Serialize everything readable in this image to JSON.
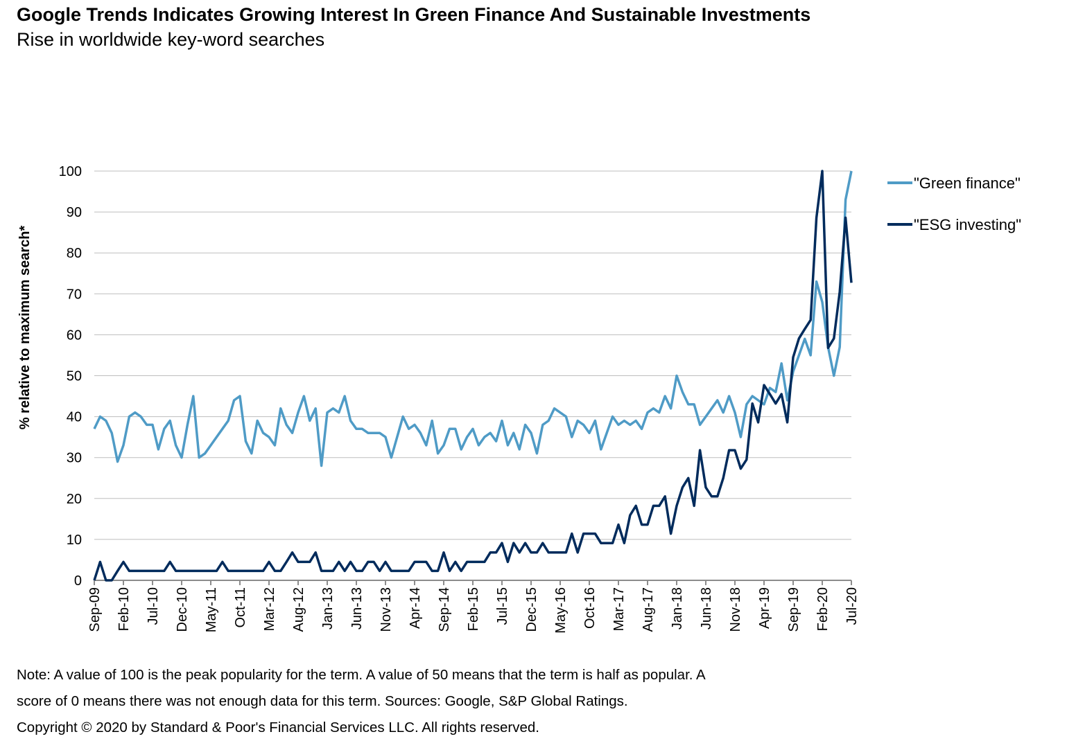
{
  "title": "Google Trends Indicates Growing Interest In Green Finance And Sustainable Investments",
  "subtitle": "Rise in worldwide key-word searches",
  "notes": [
    "Note: A value of 100 is the peak popularity for the term. A value of 50 means that the term is half as popular. A",
    "score of 0 means there was not enough data for this term. Sources: Google, S&P Global Ratings.",
    "Copyright © 2020 by Standard & Poor's Financial Services LLC. All rights reserved."
  ],
  "chart_data": {
    "type": "line",
    "title": "Google Trends Indicates Growing Interest In Green Finance And Sustainable Investments",
    "subtitle": "Rise in worldwide key-word searches",
    "xlabel": "",
    "ylabel": "% relative to maximum search*",
    "x_start": "Sep-09",
    "x_end": "Jul-20",
    "x_frequency": "monthly",
    "x_tick_labels": [
      "Sep-09",
      "Feb-10",
      "Jul-10",
      "Dec-10",
      "May-11",
      "Oct-11",
      "Mar-12",
      "Aug-12",
      "Jan-13",
      "Jun-13",
      "Nov-13",
      "Apr-14",
      "Sep-14",
      "Feb-15",
      "Jul-15",
      "Dec-15",
      "May-16",
      "Oct-16",
      "Mar-17",
      "Aug-17",
      "Jan-18",
      "Jun-18",
      "Nov-18",
      "Apr-19",
      "Sep-19",
      "Feb-20",
      "Jul-20"
    ],
    "y_ticks": [
      0,
      10,
      20,
      30,
      40,
      50,
      60,
      70,
      80,
      90,
      100
    ],
    "ylim": [
      0,
      100
    ],
    "grid": "horizontal",
    "legend_position": "right",
    "series": [
      {
        "name": "\"Green finance\"",
        "color": "#4f9bc6",
        "values": [
          37,
          40,
          39,
          36,
          29,
          33,
          40,
          41,
          40,
          38,
          38,
          32,
          37,
          39,
          33,
          30,
          38,
          45,
          30,
          31,
          33,
          35,
          37,
          39,
          44,
          45,
          34,
          31,
          39,
          36,
          35,
          33,
          42,
          38,
          36,
          41,
          45,
          39,
          42,
          28,
          41,
          42,
          41,
          45,
          39,
          37,
          37,
          36,
          36,
          36,
          35,
          30,
          35,
          40,
          37,
          38,
          36,
          33,
          39,
          31,
          33,
          37,
          37,
          32,
          35,
          37,
          33,
          35,
          36,
          34,
          39,
          33,
          36,
          32,
          38,
          36,
          31,
          38,
          39,
          42,
          41,
          40,
          35,
          39,
          38,
          36,
          39,
          32,
          36,
          40,
          38,
          39,
          38,
          39,
          37,
          41,
          42,
          41,
          45,
          42,
          50,
          46,
          43,
          43,
          38,
          40,
          42,
          44,
          41,
          45,
          41,
          35,
          43,
          45,
          44,
          43,
          47,
          46,
          53,
          44,
          51,
          55,
          59,
          55,
          73,
          68,
          57,
          50,
          57,
          93,
          100
        ]
      },
      {
        "name": "\"ESG investing\"",
        "color": "#002b5c",
        "values": [
          0,
          4.5,
          0,
          0,
          2.3,
          4.5,
          2.3,
          2.3,
          2.3,
          2.3,
          2.3,
          2.3,
          2.3,
          4.5,
          2.3,
          2.3,
          2.3,
          2.3,
          2.3,
          2.3,
          2.3,
          2.3,
          4.5,
          2.3,
          2.3,
          2.3,
          2.3,
          2.3,
          2.3,
          2.3,
          4.5,
          2.3,
          2.3,
          4.5,
          6.8,
          4.5,
          4.5,
          4.5,
          6.8,
          2.3,
          2.3,
          2.3,
          4.5,
          2.3,
          4.5,
          2.3,
          2.3,
          4.5,
          4.5,
          2.3,
          4.5,
          2.3,
          2.3,
          2.3,
          2.3,
          4.5,
          4.5,
          4.5,
          2.3,
          2.3,
          6.8,
          2.3,
          4.5,
          2.3,
          4.5,
          4.5,
          4.5,
          4.5,
          6.8,
          6.8,
          9.1,
          4.5,
          9.1,
          6.8,
          9.1,
          6.8,
          6.8,
          9.1,
          6.8,
          6.8,
          6.8,
          6.8,
          11.4,
          6.8,
          11.4,
          11.4,
          11.4,
          9.1,
          9.1,
          9.1,
          13.6,
          9.1,
          15.9,
          18.2,
          13.6,
          13.6,
          18.2,
          18.2,
          20.5,
          11.4,
          18.2,
          22.7,
          25,
          18.2,
          31.8,
          22.7,
          20.5,
          20.5,
          25,
          31.8,
          31.8,
          27.3,
          29.5,
          43.2,
          38.6,
          47.7,
          45.5,
          43.2,
          45.5,
          38.6,
          54.5,
          59.1,
          61.4,
          63.6,
          88.6,
          100,
          56.8,
          59.1,
          70.5,
          88.6,
          72.7
        ]
      }
    ]
  }
}
